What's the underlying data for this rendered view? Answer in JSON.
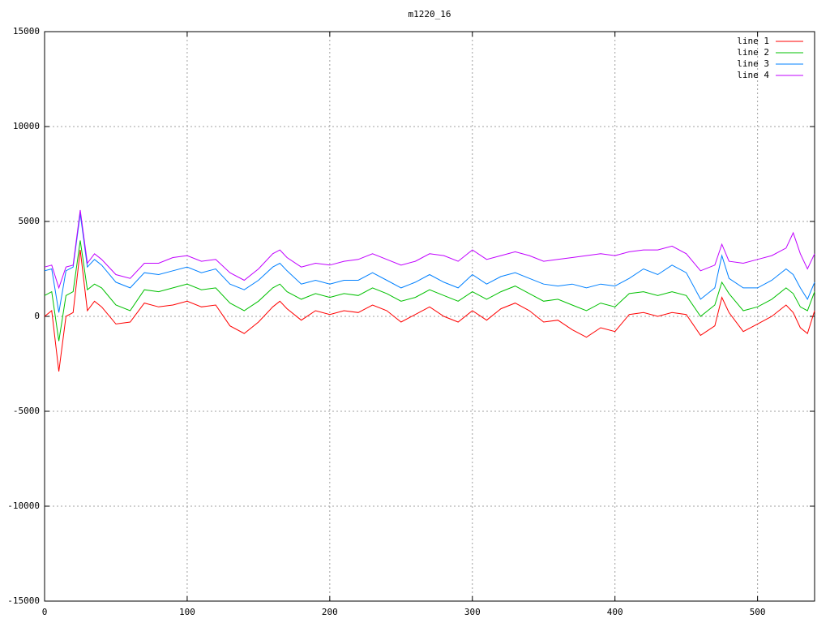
{
  "chart_data": {
    "type": "line",
    "title": "m1220_16",
    "x": [
      0,
      5,
      10,
      15,
      20,
      25,
      30,
      35,
      40,
      50,
      60,
      70,
      80,
      90,
      100,
      110,
      120,
      130,
      140,
      150,
      160,
      165,
      170,
      180,
      190,
      200,
      210,
      220,
      230,
      240,
      250,
      260,
      270,
      280,
      290,
      300,
      310,
      320,
      330,
      340,
      350,
      360,
      370,
      380,
      390,
      400,
      410,
      420,
      430,
      440,
      450,
      460,
      470,
      475,
      480,
      490,
      500,
      510,
      520,
      525,
      530,
      535,
      540
    ],
    "series": [
      {
        "name": "line 1",
        "color": "#ff0000",
        "values": [
          0,
          300,
          -2900,
          0,
          200,
          3500,
          300,
          800,
          500,
          -400,
          -300,
          700,
          500,
          600,
          800,
          500,
          600,
          -500,
          -900,
          -300,
          500,
          800,
          400,
          -200,
          300,
          100,
          300,
          200,
          600,
          300,
          -300,
          100,
          500,
          0,
          -300,
          300,
          -200,
          400,
          700,
          300,
          -300,
          -200,
          -700,
          -1100,
          -600,
          -800,
          100,
          200,
          0,
          200,
          100,
          -1000,
          -500,
          1000,
          200,
          -800,
          -400,
          0,
          600,
          200,
          -600,
          -900,
          300
        ]
      },
      {
        "name": "line 2",
        "color": "#00c000",
        "values": [
          1100,
          1300,
          -1300,
          1100,
          1300,
          4000,
          1400,
          1700,
          1500,
          600,
          300,
          1400,
          1300,
          1500,
          1700,
          1400,
          1500,
          700,
          300,
          800,
          1500,
          1700,
          1300,
          900,
          1200,
          1000,
          1200,
          1100,
          1500,
          1200,
          800,
          1000,
          1400,
          1100,
          800,
          1300,
          900,
          1300,
          1600,
          1200,
          800,
          900,
          600,
          300,
          700,
          500,
          1200,
          1300,
          1100,
          1300,
          1100,
          0,
          600,
          1800,
          1200,
          300,
          500,
          900,
          1500,
          1200,
          500,
          300,
          1300
        ]
      },
      {
        "name": "line 3",
        "color": "#0080ff",
        "values": [
          2400,
          2500,
          200,
          2400,
          2600,
          5400,
          2600,
          3000,
          2700,
          1800,
          1500,
          2300,
          2200,
          2400,
          2600,
          2300,
          2500,
          1700,
          1400,
          1900,
          2600,
          2800,
          2400,
          1700,
          1900,
          1700,
          1900,
          1900,
          2300,
          1900,
          1500,
          1800,
          2200,
          1800,
          1500,
          2200,
          1700,
          2100,
          2300,
          2000,
          1700,
          1600,
          1700,
          1500,
          1700,
          1600,
          2000,
          2500,
          2200,
          2700,
          2300,
          900,
          1500,
          3200,
          2000,
          1500,
          1500,
          1900,
          2500,
          2200,
          1500,
          900,
          1800
        ]
      },
      {
        "name": "line 4",
        "color": "#c000ff",
        "values": [
          2600,
          2700,
          1500,
          2600,
          2700,
          5600,
          2800,
          3300,
          3000,
          2200,
          2000,
          2800,
          2800,
          3100,
          3200,
          2900,
          3000,
          2300,
          1900,
          2500,
          3300,
          3500,
          3100,
          2600,
          2800,
          2700,
          2900,
          3000,
          3300,
          3000,
          2700,
          2900,
          3300,
          3200,
          2900,
          3500,
          3000,
          3200,
          3400,
          3200,
          2900,
          3000,
          3100,
          3200,
          3300,
          3200,
          3400,
          3500,
          3500,
          3700,
          3300,
          2400,
          2700,
          3800,
          2900,
          2800,
          3000,
          3200,
          3600,
          4400,
          3300,
          2500,
          3300
        ]
      }
    ],
    "xlim": [
      0,
      540
    ],
    "xticks": [
      0,
      100,
      200,
      300,
      400,
      500
    ],
    "ylim": [
      -15000,
      15000
    ],
    "yticks": [
      -15000,
      -10000,
      -5000,
      0,
      5000,
      10000,
      15000
    ],
    "grid": true,
    "legend": "top-right"
  }
}
